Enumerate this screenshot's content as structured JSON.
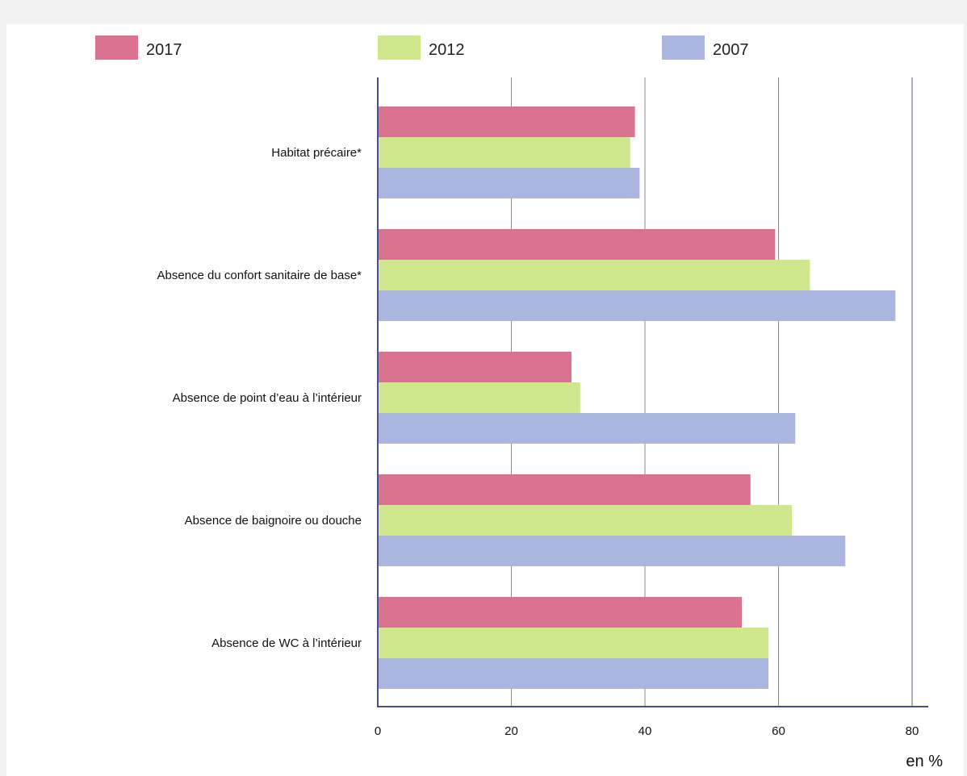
{
  "chart_data": {
    "type": "bar",
    "orientation": "horizontal",
    "categories": [
      "Habitat précaire*",
      "Absence du confort sanitaire de base*",
      "Absence de point d’eau à l’intérieur",
      "Absence de baignoire ou douche",
      "Absence de WC à l’intérieur"
    ],
    "series": [
      {
        "name": "2017",
        "color": "#d9738f",
        "values": [
          38.5,
          59.5,
          29,
          55.8,
          54.5
        ]
      },
      {
        "name": "2012",
        "color": "#cfe88d",
        "values": [
          37.8,
          64.7,
          30.3,
          62,
          58.5
        ]
      },
      {
        "name": "2007",
        "color": "#aab6e0",
        "values": [
          39.2,
          77.5,
          62.5,
          70,
          58.5
        ]
      }
    ],
    "xlim": [
      0,
      80
    ],
    "xticks": [
      0,
      20,
      40,
      60,
      80
    ],
    "xlabel": "en %",
    "legend_position": "top",
    "grid": true
  }
}
